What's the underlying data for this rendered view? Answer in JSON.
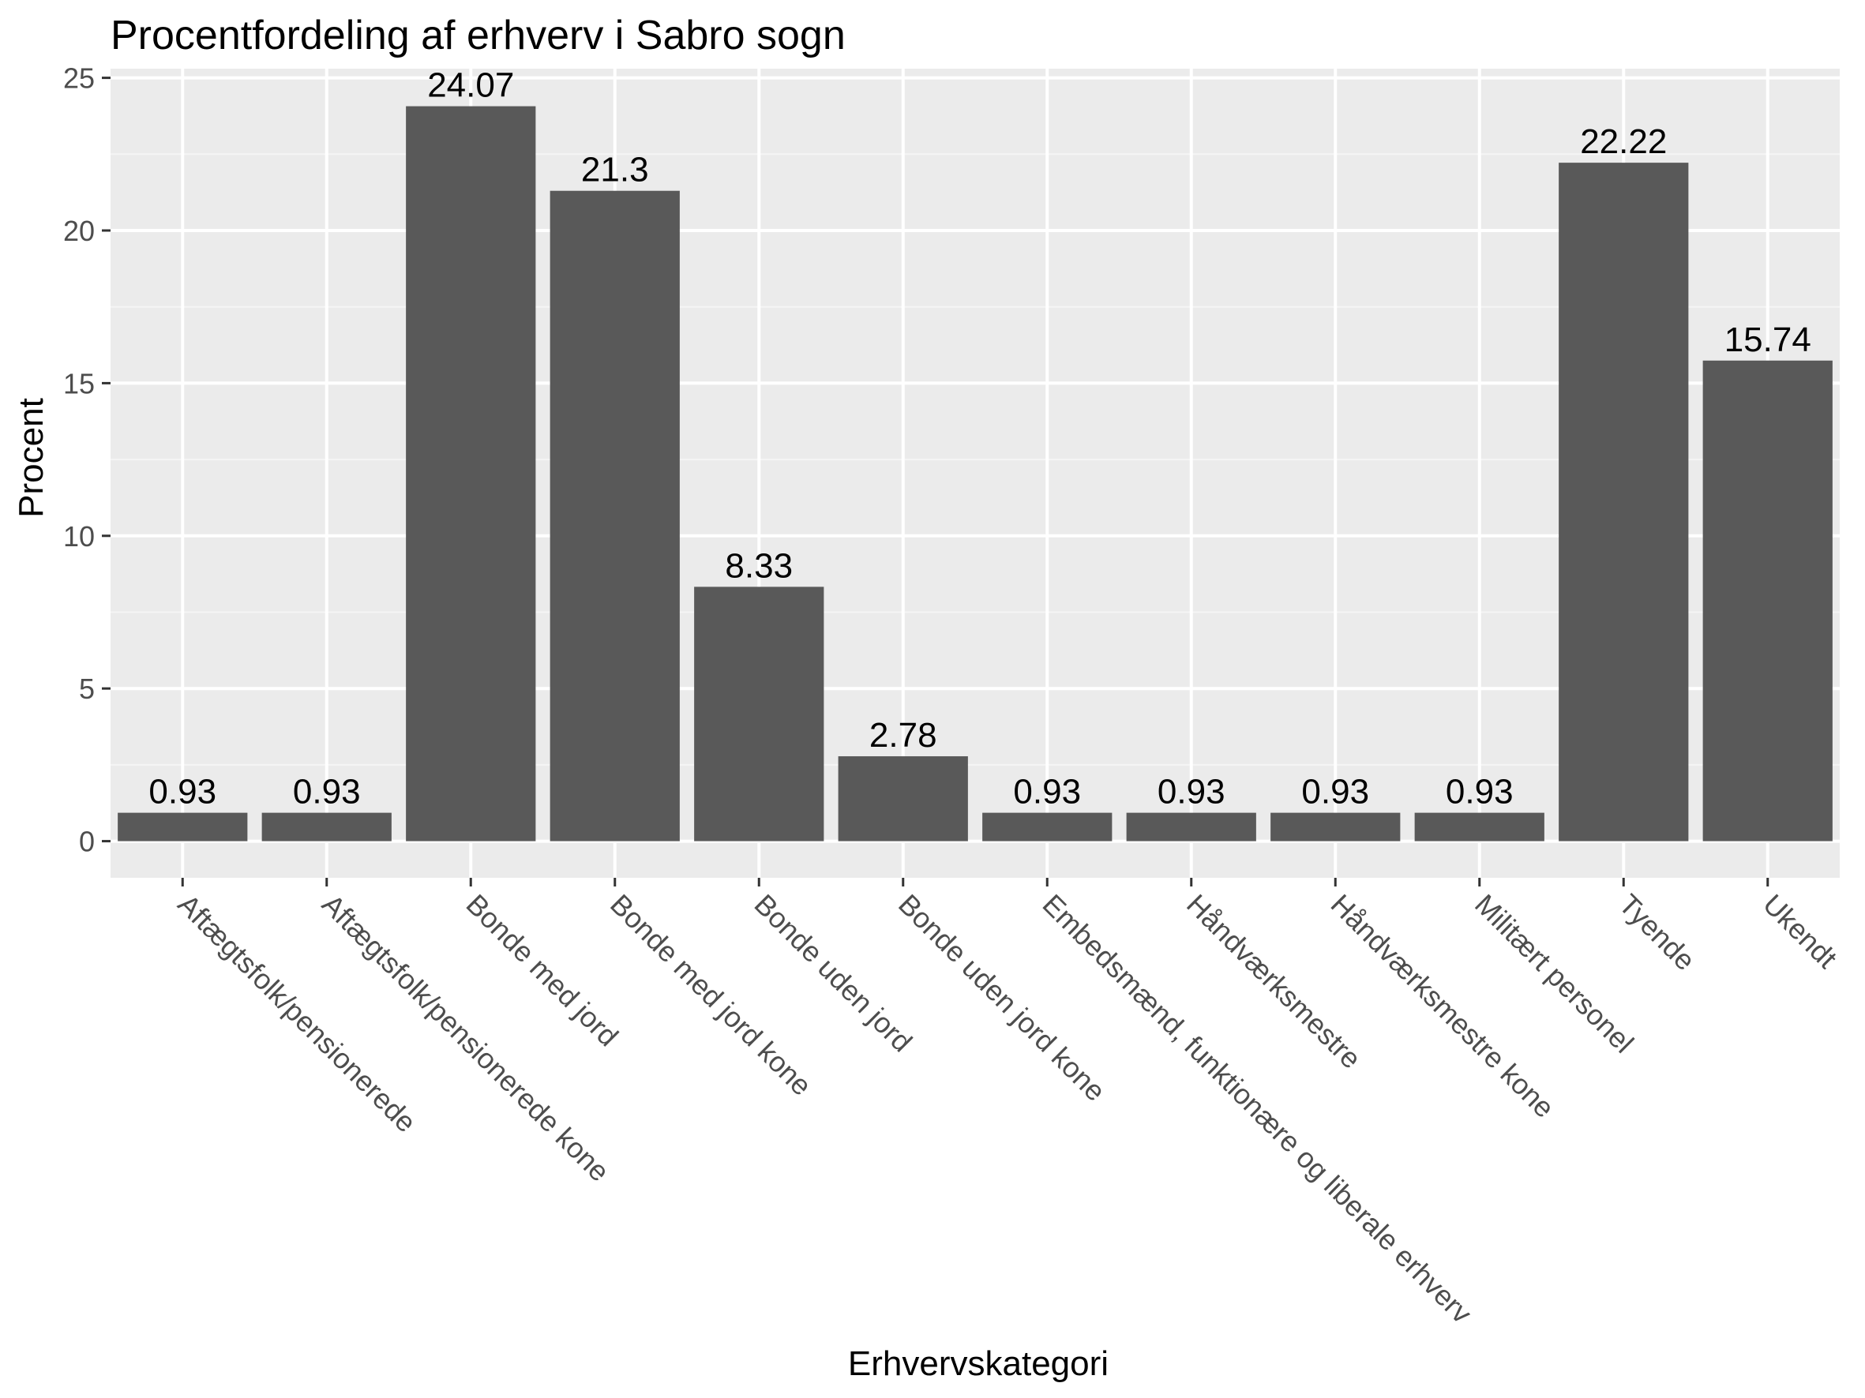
{
  "chart_data": {
    "type": "bar",
    "title": "Procentfordeling af erhverv i Sabro sogn",
    "xlabel": "Erhvervskategori",
    "ylabel": "Procent",
    "ylim": [
      -1.2,
      25.3
    ],
    "yticks": [
      0,
      5,
      10,
      15,
      20,
      25
    ],
    "grid": true,
    "categories": [
      "Aftægtsfolk/pensionerede",
      "Aftægtsfolk/pensionerede kone",
      "Bonde med jord",
      "Bonde med jord kone",
      "Bonde uden jord",
      "Bonde uden jord kone",
      "Embedsmænd, funktionære og liberale erhverv",
      "Håndværksmestre",
      "Håndværksmestre kone",
      "Militært personel",
      "Tyende",
      "Ukendt"
    ],
    "values": [
      0.93,
      0.93,
      24.07,
      21.3,
      8.33,
      2.78,
      0.93,
      0.93,
      0.93,
      0.93,
      22.22,
      15.74
    ],
    "value_labels": [
      "0.93",
      "0.93",
      "24.07",
      "21.3",
      "8.33",
      "2.78",
      "0.93",
      "0.93",
      "0.93",
      "0.93",
      "22.22",
      "15.74"
    ],
    "colors": {
      "bar": "#595959",
      "panel": "#ebebeb",
      "grid_major": "#ffffff",
      "grid_minor": "#f5f5f5"
    }
  }
}
